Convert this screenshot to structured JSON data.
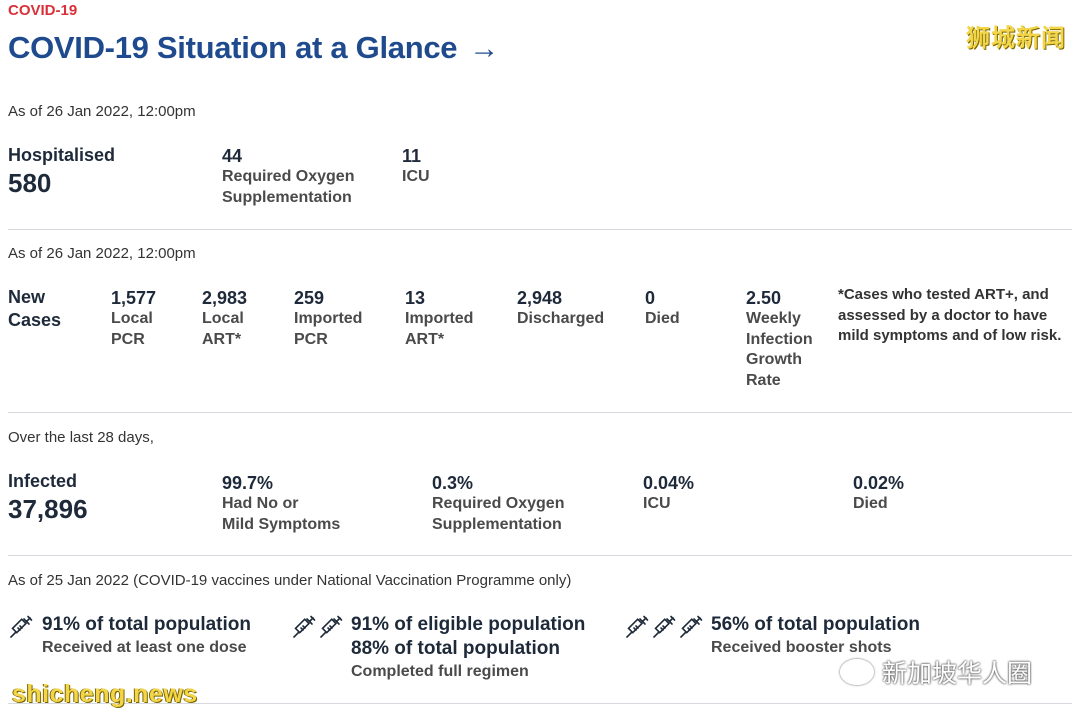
{
  "header": {
    "kicker": "COVID-19",
    "title": "COVID-19 Situation at a Glance",
    "arrow": "→"
  },
  "watermarks": {
    "top_right": "狮城新闻",
    "bottom_left": "shicheng.news",
    "wechat": "新加坡华人圈"
  },
  "hospital": {
    "asof": "As of 26 Jan 2022, 12:00pm",
    "label": "Hospitalised",
    "value": "580",
    "oxygen_value": "44",
    "oxygen_label_1": "Required Oxygen",
    "oxygen_label_2": "Supplementation",
    "icu_value": "11",
    "icu_label": "ICU"
  },
  "cases": {
    "asof": "As of 26 Jan 2022, 12:00pm",
    "label_1": "New",
    "label_2": "Cases",
    "items": [
      {
        "value": "1,577",
        "l1": "Local",
        "l2": "PCR"
      },
      {
        "value": "2,983",
        "l1": "Local",
        "l2": "ART*"
      },
      {
        "value": "259",
        "l1": "Imported",
        "l2": "PCR"
      },
      {
        "value": "13",
        "l1": "Imported",
        "l2": "ART*"
      },
      {
        "value": "2,948",
        "l1": "Discharged"
      },
      {
        "value": "0",
        "l1": "Died"
      },
      {
        "value": "2.50",
        "l1": "Weekly",
        "l2": "Infection",
        "l3": "Growth",
        "l4": "Rate"
      }
    ],
    "note": "*Cases who tested ART+, and assessed by a doctor to have mild symptoms and of low risk."
  },
  "infected": {
    "asof": "Over the last 28 days,",
    "label": "Infected",
    "value": "37,896",
    "mild_value": "99.7%",
    "mild_l1": "Had No or",
    "mild_l2": "Mild Symptoms",
    "oxygen_value": "0.3%",
    "oxygen_l1": "Required Oxygen",
    "oxygen_l2": "Supplementation",
    "icu_value": "0.04%",
    "icu_label": "ICU",
    "died_value": "0.02%",
    "died_label": "Died"
  },
  "vaccination": {
    "asof": "As of 25 Jan 2022 (COVID-19 vaccines under National Vaccination Programme only)",
    "one_dose_head": "91% of total population",
    "one_dose_desc": "Received at least one dose",
    "full_head_1": "91% of eligible population",
    "full_head_2": "88% of total population",
    "full_desc": "Completed full regimen",
    "booster_head": "56% of total population",
    "booster_desc": "Received booster shots"
  },
  "colors": {
    "title_blue": "#1f4b8e",
    "kicker_red": "#d9303a",
    "text_dark": "#1e2a3a",
    "watermark_yellow": "#f3d54a"
  }
}
